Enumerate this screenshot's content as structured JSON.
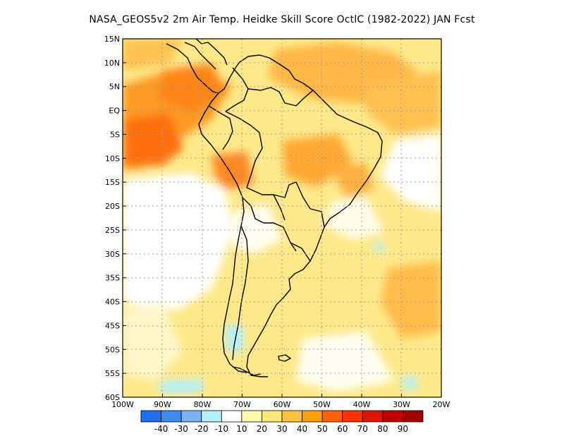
{
  "title": "NASA_GEOS5v2  2m Air Temp. Heidke Skill Score OctlC (1982-2022) JAN Fcst",
  "lat_labels": [
    "15N",
    "10N",
    "5N",
    "EQ",
    "5S",
    "10S",
    "15S",
    "20S",
    "25S",
    "30S",
    "35S",
    "40S",
    "45S",
    "50S",
    "55S",
    "60S"
  ],
  "lon_labels": [
    "100W",
    "90W",
    "80W",
    "70W",
    "60W",
    "50W",
    "40W",
    "30W",
    "20W"
  ],
  "colorbar": {
    "colors": [
      "#1e6eeb",
      "#3c8cf0",
      "#78b4f5",
      "#b4f0fa",
      "#ffffff",
      "#fffaaa",
      "#ffe678",
      "#ffc03c",
      "#ffa000",
      "#ff6000",
      "#ff3200",
      "#e11400",
      "#c00000",
      "#a50000"
    ],
    "labels": [
      "-40",
      "-30",
      "-20",
      "-10",
      "10",
      "20",
      "30",
      "40",
      "50",
      "60",
      "70",
      "80",
      "90"
    ]
  },
  "map": {
    "lon_range": [
      -100,
      -20
    ],
    "lat_range": [
      -60,
      15
    ],
    "grid": "dotted"
  }
}
